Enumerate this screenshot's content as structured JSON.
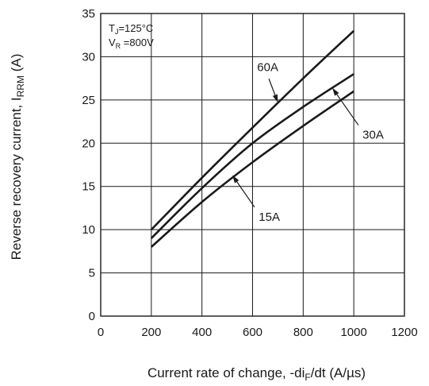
{
  "chart_data": {
    "type": "line",
    "title": "",
    "xlabel": "Current rate of change, -di",
    "xlabel_sub": "F",
    "xlabel_tail": "/dt (A/µs)",
    "ylabel": "Reverse recovery current, I",
    "ylabel_sub": "RRM",
    "ylabel_tail": " (A)",
    "xlim": [
      0,
      1200
    ],
    "ylim": [
      0,
      35
    ],
    "xticks": [
      0,
      200,
      400,
      600,
      800,
      1000,
      1200
    ],
    "yticks": [
      0,
      5,
      10,
      15,
      20,
      25,
      30,
      35
    ],
    "grid": true,
    "conditions": [
      {
        "main": "T",
        "sub": "J",
        "value": "=125°C"
      },
      {
        "main": "V",
        "sub": "R",
        "value": " =800V"
      }
    ],
    "series": [
      {
        "name": "60A",
        "x": [
          200,
          400,
          600,
          800,
          1000
        ],
        "y": [
          10,
          16,
          21.8,
          27.5,
          33
        ]
      },
      {
        "name": "30A",
        "x": [
          200,
          400,
          600,
          800,
          1000
        ],
        "y": [
          9,
          14.8,
          20,
          24.2,
          28
        ]
      },
      {
        "name": "15A",
        "x": [
          200,
          400,
          600,
          800,
          1000
        ],
        "y": [
          8,
          13.2,
          17.8,
          22,
          26
        ]
      }
    ],
    "annotations": [
      {
        "text": "60A",
        "series": "60A",
        "target_x": 700,
        "target_y": 24.7,
        "label_x": 660,
        "label_y": 27.8
      },
      {
        "text": "30A",
        "series": "30A",
        "target_x": 915,
        "target_y": 26.4,
        "label_x": 1025,
        "label_y": 21.8
      },
      {
        "text": "15A",
        "series": "15A",
        "target_x": 520,
        "target_y": 16.3,
        "label_x": 615,
        "label_y": 12.3
      }
    ]
  }
}
